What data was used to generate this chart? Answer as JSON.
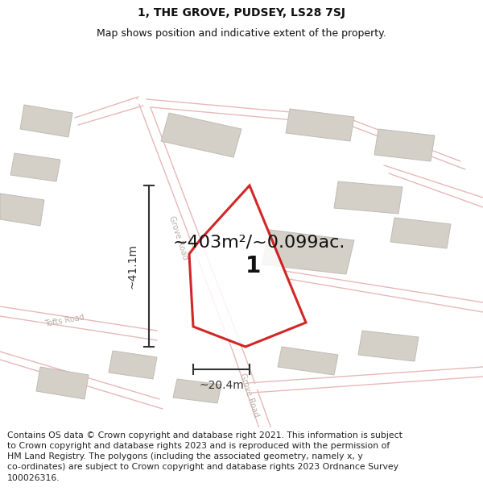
{
  "title": "1, THE GROVE, PUDSEY, LS28 7SJ",
  "subtitle": "Map shows position and indicative extent of the property.",
  "footer": "Contains OS data © Crown copyright and database right 2021. This information is subject to Crown copyright and database rights 2023 and is reproduced with the permission of HM Land Registry. The polygons (including the associated geometry, namely x, y co-ordinates) are subject to Crown copyright and database rights 2023 Ordnance Survey 100026316.",
  "area_text": "~403m²/~0.099ac.",
  "dim_vertical": "~41.1m",
  "dim_horizontal": "~20.4m",
  "plot_label": "1",
  "plot_color": "#cc0000",
  "map_bg": "#f2f0ed",
  "road_color": "#e8b8b8",
  "road_color2": "#f0d0d0",
  "building_color": "#d4d0c8",
  "building_edge": "#c0bcb4",
  "dim_color": "#333333",
  "text_color": "#111111",
  "road_label_color": "#b8b0a8",
  "title_fontsize": 10,
  "subtitle_fontsize": 9,
  "footer_fontsize": 7.8,
  "area_fontsize": 16,
  "dim_fontsize": 10,
  "plot_label_fontsize": 20
}
